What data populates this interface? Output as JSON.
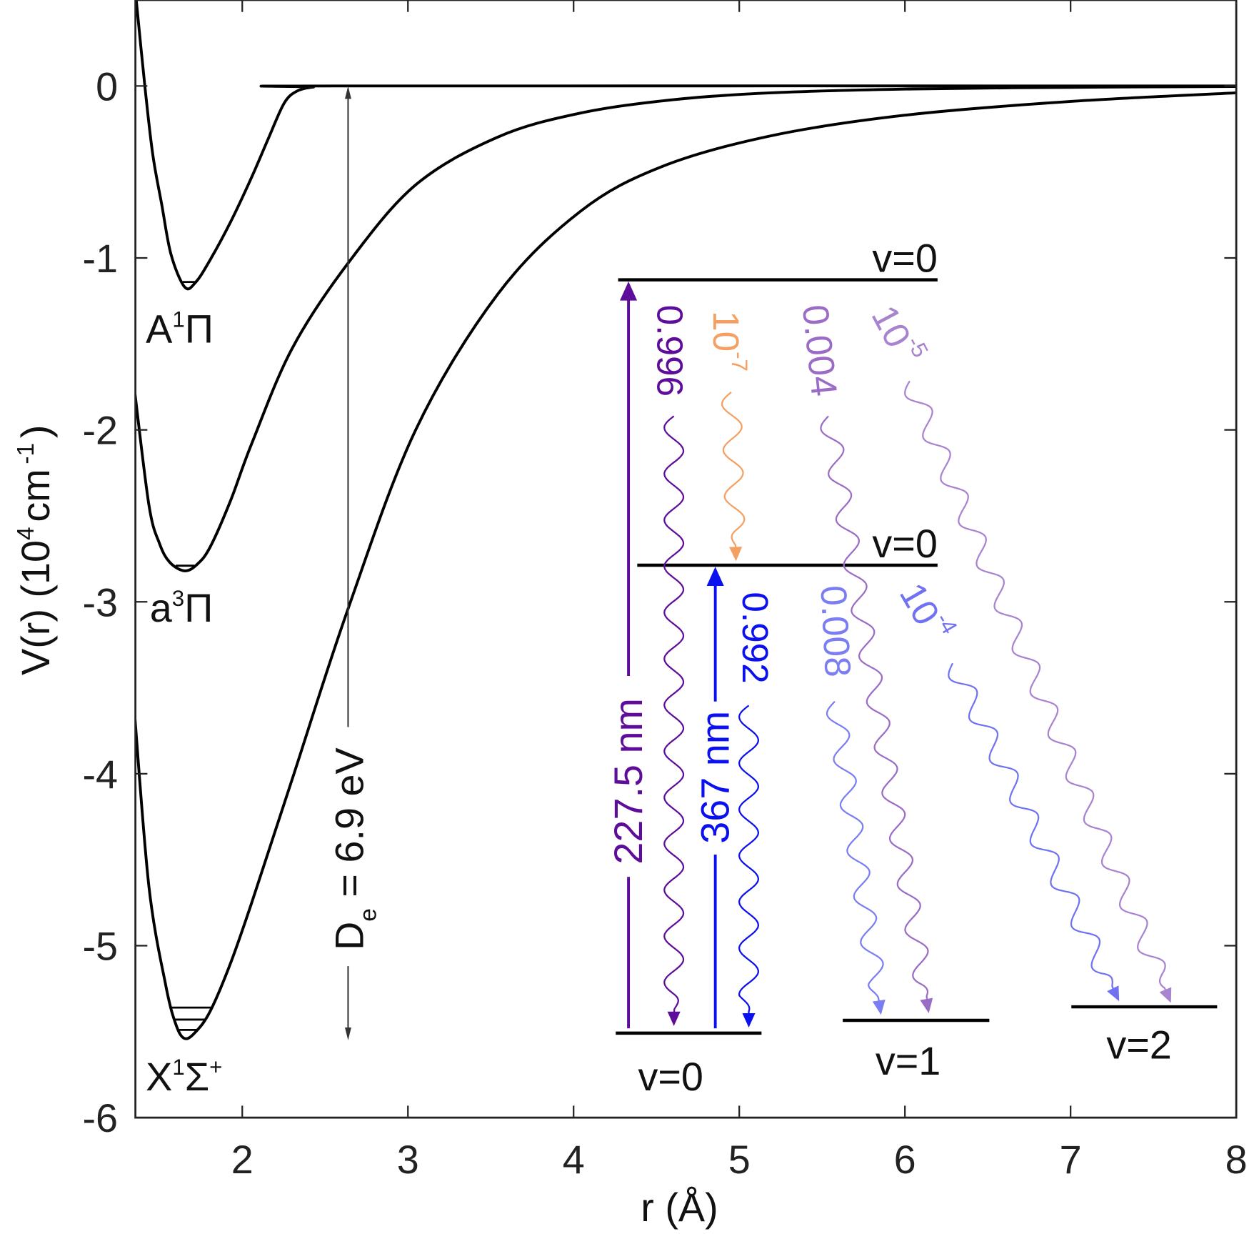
{
  "chart_data": {
    "type": "line",
    "xlabel": "r (Å)",
    "ylabel": {
      "main": "V(r) (10",
      "exp": "4",
      "unit": "cm",
      "unit_exp": "-1",
      "close": ")"
    },
    "xlim": [
      1.355,
      8
    ],
    "ylim": [
      -6,
      0.5
    ],
    "xticks": [
      "2",
      "3",
      "4",
      "5",
      "6",
      "7",
      "8"
    ],
    "xtick_values": [
      2,
      3,
      4,
      5,
      6,
      7,
      8
    ],
    "yticks": [
      "0",
      "-1",
      "-2",
      "-3",
      "-4",
      "-5",
      "-6"
    ],
    "ytick_values": [
      0,
      -1,
      -2,
      -3,
      -4,
      -5,
      -6
    ],
    "grid": false,
    "series": [
      {
        "name": "A1Π",
        "label": {
          "main": "A",
          "sup": "1",
          "term": "Π",
          "sup2": ""
        },
        "color": "#000000",
        "points": [
          [
            1.36,
            0.5
          ],
          [
            1.413,
            -0.01
          ],
          [
            1.46,
            -0.4
          ],
          [
            1.514,
            -0.69
          ],
          [
            1.57,
            -0.98
          ],
          [
            1.653,
            -1.17
          ],
          [
            1.72,
            -1.14
          ],
          [
            1.807,
            -1.01
          ],
          [
            1.93,
            -0.79
          ],
          [
            2.057,
            -0.53
          ],
          [
            2.16,
            -0.3
          ],
          [
            2.253,
            -0.1
          ],
          [
            2.33,
            -0.03
          ],
          [
            2.43,
            -0.006
          ],
          [
            2.55,
            0
          ],
          [
            8,
            0
          ]
        ],
        "levels": [
          -1.14
        ]
      },
      {
        "name": "a3Π",
        "label": {
          "main": "a",
          "sup": "3",
          "term": "Π",
          "sup2": ""
        },
        "color": "#000000",
        "points": [
          [
            1.35,
            -1.77
          ],
          [
            1.437,
            -2.44
          ],
          [
            1.5,
            -2.66
          ],
          [
            1.562,
            -2.77
          ],
          [
            1.653,
            -2.82
          ],
          [
            1.73,
            -2.78
          ],
          [
            1.807,
            -2.68
          ],
          [
            1.93,
            -2.41
          ],
          [
            2.057,
            -2.08
          ],
          [
            2.302,
            -1.525
          ],
          [
            2.639,
            -1.03
          ],
          [
            3.047,
            -0.575
          ],
          [
            3.543,
            -0.297
          ],
          [
            4.04,
            -0.158
          ],
          [
            4.6,
            -0.08
          ],
          [
            5.19,
            -0.04
          ],
          [
            6.0,
            -0.018
          ],
          [
            7.0,
            -0.008
          ],
          [
            8.0,
            -0.003
          ]
        ],
        "levels": [
          -2.79
        ]
      },
      {
        "name": "X1Σ+",
        "label": {
          "main": "X",
          "sup": "1",
          "term": "Σ",
          "sup2": "+"
        },
        "color": "#000000",
        "points": [
          [
            1.35,
            -3.65
          ],
          [
            1.437,
            -4.66
          ],
          [
            1.538,
            -5.23
          ],
          [
            1.6,
            -5.46
          ],
          [
            1.653,
            -5.54
          ],
          [
            1.72,
            -5.5
          ],
          [
            1.807,
            -5.38
          ],
          [
            1.93,
            -5.1
          ],
          [
            2.057,
            -4.75
          ],
          [
            2.302,
            -4.03
          ],
          [
            2.639,
            -3.04
          ],
          [
            3.047,
            -2.0
          ],
          [
            3.543,
            -1.21
          ],
          [
            4.04,
            -0.73
          ],
          [
            4.53,
            -0.47
          ],
          [
            5.19,
            -0.29
          ],
          [
            6.0,
            -0.17
          ],
          [
            7.0,
            -0.09
          ],
          [
            8.0,
            -0.04
          ]
        ],
        "levels": [
          -5.36,
          -5.43,
          -5.49
        ]
      }
    ],
    "dissociation": {
      "label_main": "D",
      "label_sub": "e",
      "label_rest": " = 6.9 eV"
    },
    "levels": {
      "upper": "v=0",
      "middle": "v=0",
      "ground_v0": "v=0",
      "ground_v1": "v=1",
      "ground_v2": "v=2"
    },
    "excitations": [
      {
        "label": "227.5 nm",
        "color": "#5e0d9b"
      },
      {
        "label": "367 nm",
        "color": "#0b10ee"
      }
    ],
    "branching": [
      {
        "from": "A v=0",
        "to": "X v=0",
        "text": "0.996",
        "exp": "",
        "color": "#5e0d9b"
      },
      {
        "from": "A v=0",
        "to": "a v=0",
        "text": "10",
        "exp": "-7",
        "color": "#f4a063"
      },
      {
        "from": "A v=0",
        "to": "X v=1",
        "text": "0.004",
        "exp": "",
        "color": "#9a6cc6"
      },
      {
        "from": "A v=0",
        "to": "X v=2",
        "text": "10",
        "exp": "-5",
        "color": "#a883cf"
      },
      {
        "from": "a v=0",
        "to": "X v=0",
        "text": "0.992",
        "exp": "",
        "color": "#0b10ee"
      },
      {
        "from": "a v=0",
        "to": "X v=1",
        "text": "0.008",
        "exp": "",
        "color": "#7b7df2"
      },
      {
        "from": "a v=0",
        "to": "X v=2",
        "text": "10",
        "exp": "-4",
        "color": "#7072f2"
      }
    ]
  }
}
